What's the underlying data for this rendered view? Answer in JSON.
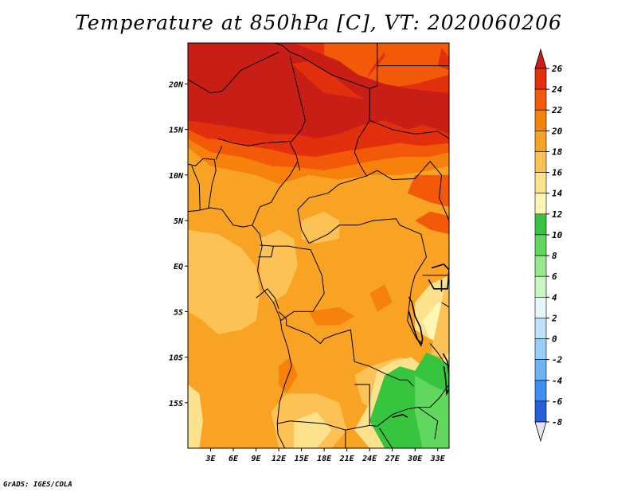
{
  "title": "Temperature at 850hPa [C], VT: 2020060206",
  "credit": "GrADS: IGES/COLA",
  "map": {
    "lon_range": [
      0,
      34.5
    ],
    "lat_range": [
      -20,
      24.5
    ],
    "lat_ticks": [
      {
        "value": 20,
        "label": "20N"
      },
      {
        "value": 15,
        "label": "15N"
      },
      {
        "value": 10,
        "label": "10N"
      },
      {
        "value": 5,
        "label": "5N"
      },
      {
        "value": 0,
        "label": "EQ"
      },
      {
        "value": -5,
        "label": "5S"
      },
      {
        "value": -10,
        "label": "10S"
      },
      {
        "value": -15,
        "label": "15S"
      }
    ],
    "lon_ticks": [
      {
        "value": 3,
        "label": "3E"
      },
      {
        "value": 6,
        "label": "6E"
      },
      {
        "value": 9,
        "label": "9E"
      },
      {
        "value": 12,
        "label": "12E"
      },
      {
        "value": 15,
        "label": "15E"
      },
      {
        "value": 18,
        "label": "18E"
      },
      {
        "value": 21,
        "label": "21E"
      },
      {
        "value": 24,
        "label": "24E"
      },
      {
        "value": 27,
        "label": "27E"
      },
      {
        "value": 30,
        "label": "30E"
      },
      {
        "value": 33,
        "label": "33E"
      }
    ]
  },
  "colorbar": {
    "levels": [
      "26",
      "24",
      "22",
      "20",
      "18",
      "16",
      "14",
      "12",
      "10",
      "8",
      "6",
      "4",
      "2",
      "0",
      "-2",
      "-4",
      "-6",
      "-8"
    ],
    "colors": [
      "#c81e16",
      "#e2300e",
      "#f25a0a",
      "#f6820c",
      "#f8a324",
      "#fcc256",
      "#fde28e",
      "#fdf6b4",
      "#37c43f",
      "#62d760",
      "#98e88e",
      "#c8f8c0",
      "#e6f6fa",
      "#bee2fa",
      "#98cef8",
      "#6eb4f4",
      "#3c8ff0",
      "#2460dc",
      "#1842c2",
      "#0a28a0",
      "#0a0a6a",
      "#e4e4f6"
    ]
  }
}
